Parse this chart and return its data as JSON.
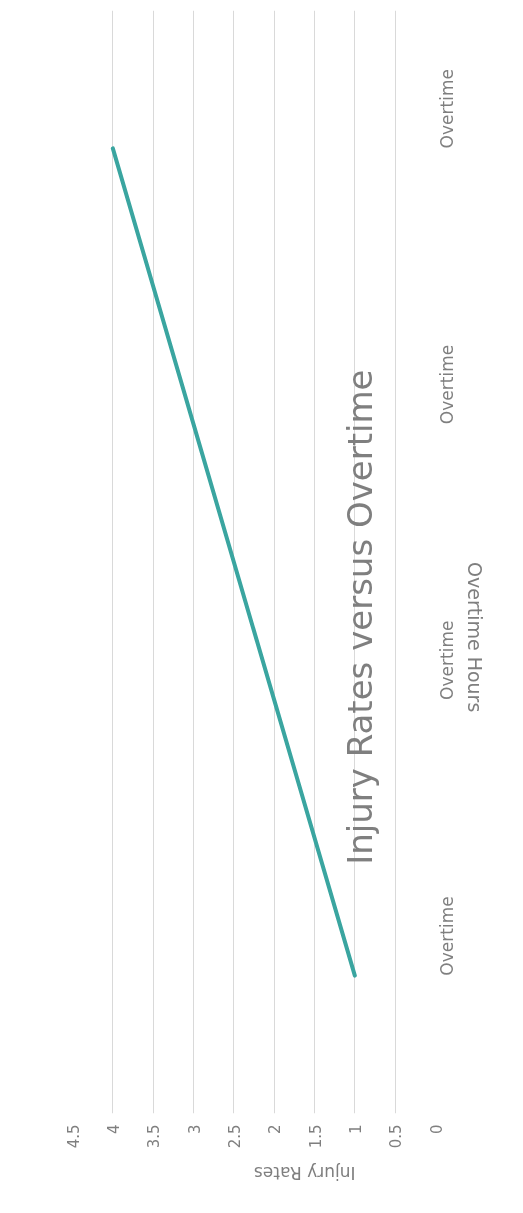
{
  "chart_data": {
    "type": "line",
    "orientation": "horizontal",
    "title": "Injury Rates versus Overtime",
    "xlabel": "Injury Rates",
    "ylabel": "Overtime Hours",
    "categories": [
      "Overtime",
      "Overtime",
      "Overtime",
      "Overtime"
    ],
    "series": [
      {
        "color": "#3aa5a0",
        "values": [
          4,
          3,
          2,
          1
        ]
      }
    ],
    "xlim": [
      4.5,
      0
    ],
    "xticks": [
      0,
      0.5,
      1,
      1.5,
      2,
      2.5,
      3,
      3.5,
      4,
      4.5
    ],
    "grid": "x",
    "marker": "none",
    "line_style": "solid"
  }
}
